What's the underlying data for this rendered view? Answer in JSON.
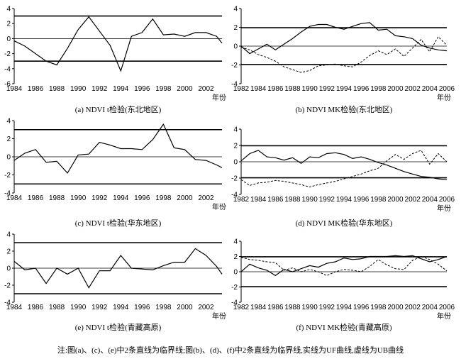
{
  "note": "注:图(a)、(c)、(e)中2条直线为临界线;图(b)、(d)、(f)中2条直线为临界线,实线为UF曲线,虚线为UB曲线",
  "chart_data": [
    {
      "type": "line",
      "caption": "(a) NDVI t检验(东北地区)",
      "xlabel": "年份",
      "x_ticks": [
        1984,
        1986,
        1988,
        1990,
        1992,
        1994,
        1996,
        1998,
        2000,
        2002
      ],
      "y_ticks": [
        -6,
        -4,
        -2,
        0,
        2,
        4
      ],
      "xlim": [
        1984,
        2003.5
      ],
      "ylim": [
        -6,
        4
      ],
      "critical_lines": [
        3,
        -3
      ],
      "series": [
        {
          "style": "solid",
          "x": [
            1984,
            1985,
            1986,
            1987,
            1988,
            1989,
            1990,
            1991,
            1992,
            1993,
            1994,
            1995,
            1996,
            1997,
            1998,
            1999,
            2000,
            2001,
            2002,
            2003,
            2003.5
          ],
          "values": [
            -0.3,
            -1.0,
            -2.0,
            -3.0,
            -3.5,
            -1.3,
            1.2,
            2.9,
            1.0,
            -0.9,
            -4.3,
            0.3,
            0.8,
            2.6,
            0.5,
            0.6,
            0.3,
            0.8,
            0.8,
            0.3,
            -0.6
          ]
        }
      ]
    },
    {
      "type": "line",
      "caption": "(b) NDVI MK检验(东北地区)",
      "xlabel": "年份",
      "x_ticks": [
        1982,
        1984,
        1986,
        1988,
        1990,
        1992,
        1994,
        1996,
        1998,
        2000,
        2002,
        2004,
        2006
      ],
      "y_ticks": [
        -4,
        -2,
        0,
        2,
        4
      ],
      "xlim": [
        1982,
        2006
      ],
      "ylim": [
        -4,
        4
      ],
      "critical_lines": [
        1.96,
        -1.96
      ],
      "series": [
        {
          "style": "solid",
          "x": [
            1982,
            1983,
            1984,
            1985,
            1986,
            1987,
            1988,
            1989,
            1990,
            1991,
            1992,
            1993,
            1994,
            1995,
            1996,
            1997,
            1998,
            1999,
            2000,
            2001,
            2002,
            2003,
            2004,
            2005,
            2006
          ],
          "values": [
            0.0,
            -0.8,
            -0.3,
            0.2,
            -0.4,
            0.2,
            0.8,
            1.5,
            2.1,
            2.3,
            2.3,
            2.0,
            1.8,
            2.1,
            2.4,
            2.5,
            1.7,
            1.8,
            1.1,
            1.0,
            0.8,
            0.1,
            -0.2,
            -0.4,
            -0.5
          ]
        },
        {
          "style": "dashed",
          "x": [
            1982,
            1983,
            1984,
            1985,
            1986,
            1987,
            1988,
            1989,
            1990,
            1991,
            1992,
            1993,
            1994,
            1995,
            1996,
            1997,
            1998,
            1999,
            2000,
            2001,
            2002,
            2003,
            2004,
            2005,
            2006
          ],
          "values": [
            -0.1,
            -0.4,
            -0.9,
            -1.2,
            -1.6,
            -2.2,
            -2.5,
            -2.8,
            -2.6,
            -2.1,
            -2.0,
            -1.9,
            -2.1,
            -2.2,
            -1.7,
            -1.0,
            -0.5,
            -0.9,
            -0.3,
            -1.1,
            -0.2,
            0.7,
            -0.6,
            1.0,
            0.1
          ]
        }
      ]
    },
    {
      "type": "line",
      "caption": "(c) NDVI t检验(华东地区)",
      "xlabel": "年份",
      "x_ticks": [
        1984,
        1986,
        1988,
        1990,
        1992,
        1994,
        1996,
        1998,
        2000,
        2002
      ],
      "y_ticks": [
        -4,
        -2,
        0,
        2,
        4
      ],
      "xlim": [
        1984,
        2003.5
      ],
      "ylim": [
        -4,
        4
      ],
      "critical_lines": [
        3,
        -3
      ],
      "series": [
        {
          "style": "solid",
          "x": [
            1984,
            1985,
            1986,
            1987,
            1988,
            1989,
            1990,
            1991,
            1992,
            1993,
            1994,
            1995,
            1996,
            1997,
            1998,
            1999,
            2000,
            2001,
            2002,
            2003,
            2003.5
          ],
          "values": [
            -0.4,
            0.4,
            0.8,
            -0.6,
            -0.5,
            -1.8,
            0.2,
            0.3,
            1.6,
            1.3,
            0.9,
            0.9,
            0.8,
            1.9,
            3.6,
            1.0,
            0.8,
            -0.3,
            -0.4,
            -0.9,
            -1.2
          ]
        }
      ]
    },
    {
      "type": "line",
      "caption": "(d) NDVI MK检验(华东地区)",
      "xlabel": "年份",
      "x_ticks": [
        1982,
        1984,
        1986,
        1988,
        1990,
        1992,
        1994,
        1996,
        1998,
        2000,
        2002,
        2004,
        2006
      ],
      "y_ticks": [
        -4,
        -2,
        0,
        2,
        4
      ],
      "xlim": [
        1982,
        2006
      ],
      "ylim": [
        -4,
        4
      ],
      "critical_lines": [
        1.96,
        -1.96
      ],
      "series": [
        {
          "style": "solid",
          "x": [
            1982,
            1983,
            1984,
            1985,
            1986,
            1987,
            1988,
            1989,
            1990,
            1991,
            1992,
            1993,
            1994,
            1995,
            1996,
            1997,
            1998,
            1999,
            2000,
            2001,
            2002,
            2003,
            2004,
            2005,
            2006
          ],
          "values": [
            0.1,
            1.0,
            1.4,
            0.6,
            0.5,
            0.2,
            0.5,
            -0.2,
            0.6,
            0.5,
            1.0,
            1.1,
            0.9,
            0.4,
            0.6,
            0.3,
            -0.1,
            -0.4,
            -0.8,
            -1.2,
            -1.5,
            -1.8,
            -1.9,
            -2.1,
            -2.2
          ]
        },
        {
          "style": "dashed",
          "x": [
            1982,
            1983,
            1984,
            1985,
            1986,
            1987,
            1988,
            1989,
            1990,
            1991,
            1992,
            1993,
            1994,
            1995,
            1996,
            1997,
            1998,
            1999,
            2000,
            2001,
            2002,
            2003,
            2004,
            2005,
            2006
          ],
          "values": [
            -2.2,
            -2.9,
            -2.6,
            -2.5,
            -2.3,
            -2.4,
            -2.6,
            -2.8,
            -3.1,
            -2.8,
            -2.6,
            -2.4,
            -2.1,
            -1.8,
            -1.5,
            -1.1,
            -0.8,
            0.1,
            0.9,
            0.3,
            1.0,
            1.4,
            -0.3,
            1.0,
            0.0
          ]
        }
      ]
    },
    {
      "type": "line",
      "caption": "(e) NDVI t检验(青藏高原)",
      "xlabel": "年份",
      "x_ticks": [
        1984,
        1986,
        1988,
        1990,
        1992,
        1994,
        1996,
        1998,
        2000,
        2002
      ],
      "y_ticks": [
        -4,
        -2,
        0,
        2,
        4
      ],
      "xlim": [
        1984,
        2003.5
      ],
      "ylim": [
        -4,
        4
      ],
      "critical_lines": [
        3,
        -3
      ],
      "series": [
        {
          "style": "solid",
          "x": [
            1984,
            1985,
            1986,
            1987,
            1988,
            1989,
            1990,
            1991,
            1992,
            1993,
            1994,
            1995,
            1996,
            1997,
            1998,
            1999,
            2000,
            2001,
            2002,
            2003,
            2003.5
          ],
          "values": [
            0.8,
            -0.2,
            0.0,
            -1.8,
            0.0,
            -0.7,
            0.0,
            -2.3,
            -0.3,
            -0.3,
            1.5,
            0.0,
            -0.1,
            -0.2,
            0.3,
            0.7,
            0.7,
            2.3,
            1.5,
            0.2,
            -0.7
          ]
        }
      ]
    },
    {
      "type": "line",
      "caption": "(f) NDVI MK检验(青藏高原)",
      "xlabel": "年份",
      "x_ticks": [
        1982,
        1984,
        1986,
        1988,
        1990,
        1992,
        1994,
        1996,
        1998,
        2000,
        2002,
        2004,
        2006
      ],
      "y_ticks": [
        -4,
        -2,
        0,
        2,
        4
      ],
      "xlim": [
        1982,
        2006
      ],
      "ylim": [
        -4,
        4
      ],
      "critical_lines": [
        1.96,
        -1.96
      ],
      "series": [
        {
          "style": "solid",
          "x": [
            1982,
            1983,
            1984,
            1985,
            1986,
            1987,
            1988,
            1989,
            1990,
            1991,
            1992,
            1993,
            1994,
            1995,
            1996,
            1997,
            1998,
            1999,
            2000,
            2001,
            2002,
            2003,
            2004,
            2005,
            2006
          ],
          "values": [
            0.0,
            1.0,
            0.5,
            0.2,
            -0.5,
            0.3,
            0.0,
            0.4,
            0.8,
            0.6,
            1.1,
            1.3,
            1.8,
            1.6,
            1.7,
            2.0,
            2.0,
            2.0,
            2.1,
            2.0,
            2.1,
            1.7,
            1.3,
            1.6,
            2.0
          ]
        },
        {
          "style": "dashed",
          "x": [
            1982,
            1983,
            1984,
            1985,
            1986,
            1987,
            1988,
            1989,
            1990,
            1991,
            1992,
            1993,
            1994,
            1995,
            1996,
            1997,
            1998,
            1999,
            2000,
            2001,
            2002,
            2003,
            2004,
            2005,
            2006
          ],
          "values": [
            1.9,
            1.6,
            1.5,
            1.3,
            1.2,
            0.2,
            0.5,
            0.0,
            0.3,
            0.0,
            -0.5,
            0.0,
            0.3,
            0.2,
            0.0,
            0.7,
            1.6,
            0.9,
            0.4,
            0.3,
            1.5,
            2.0,
            1.6,
            1.0,
            0.1
          ]
        }
      ]
    }
  ]
}
